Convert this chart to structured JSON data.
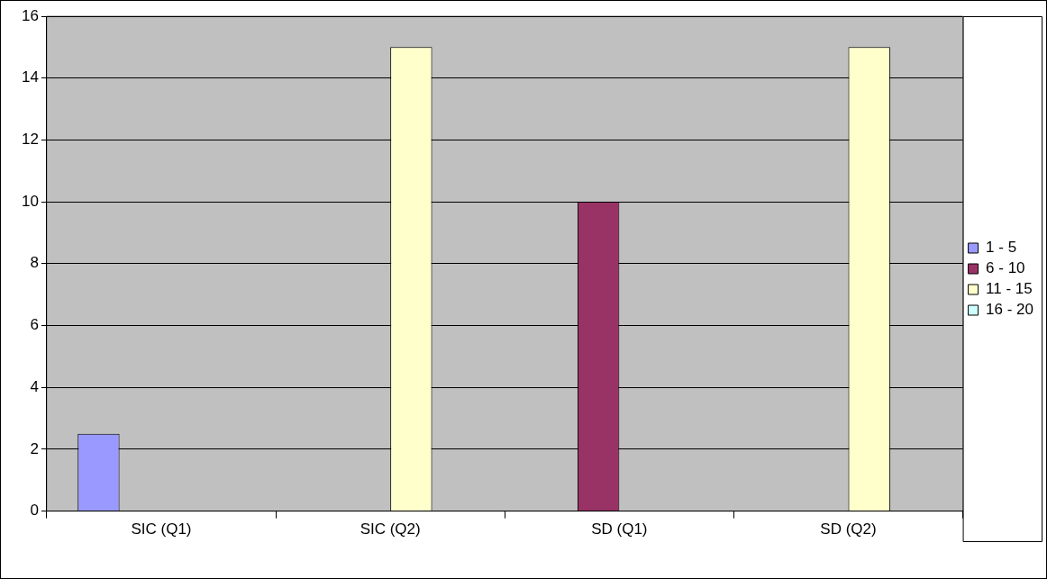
{
  "chart_data": {
    "type": "bar",
    "categories": [
      "SIC (Q1)",
      "SIC (Q2)",
      "SD (Q1)",
      "SD (Q2)"
    ],
    "series": [
      {
        "name": "1 - 5",
        "color": "#9999ff",
        "values": [
          2.5,
          0,
          0,
          0
        ]
      },
      {
        "name": "6 - 10",
        "color": "#993366",
        "values": [
          0,
          0,
          10,
          0
        ]
      },
      {
        "name": "11 - 15",
        "color": "#ffffcc",
        "values": [
          0,
          15,
          0,
          15
        ]
      },
      {
        "name": "16 - 20",
        "color": "#ccffff",
        "values": [
          0,
          0,
          0,
          0
        ]
      }
    ],
    "ylim": [
      0,
      16
    ],
    "yticks": [
      0,
      2,
      4,
      6,
      8,
      10,
      12,
      14,
      16
    ],
    "grid": "y",
    "legend": "right"
  }
}
